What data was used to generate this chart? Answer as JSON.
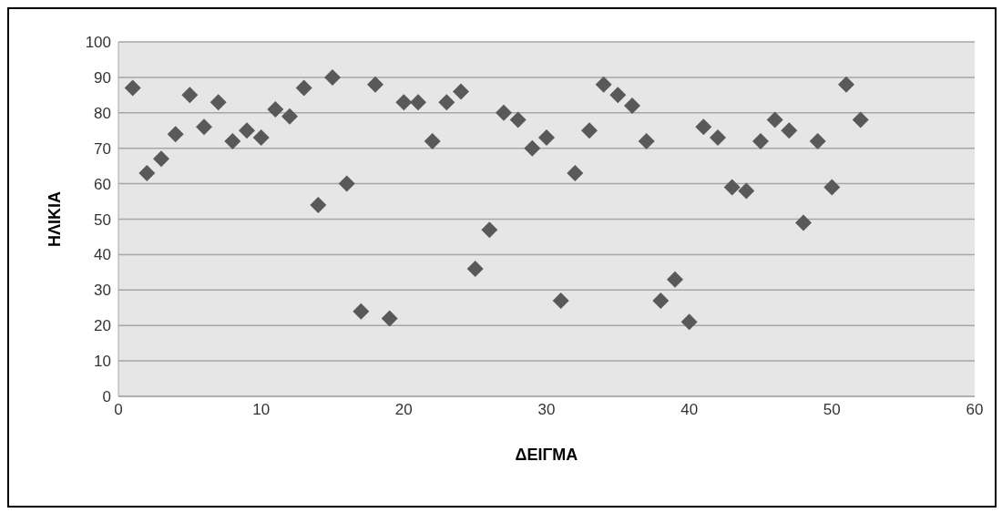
{
  "chart_data": {
    "type": "scatter",
    "xlabel": "ΔΕΙΓΜΑ",
    "ylabel": "ΗΛΙΚΙΑ",
    "x": [
      1,
      2,
      3,
      4,
      5,
      6,
      7,
      8,
      9,
      10,
      11,
      12,
      13,
      14,
      15,
      16,
      17,
      18,
      19,
      20,
      21,
      22,
      23,
      24,
      25,
      26,
      27,
      28,
      29,
      30,
      31,
      32,
      33,
      34,
      35,
      36,
      37,
      38,
      39,
      40,
      41,
      42,
      43,
      44,
      45,
      46,
      47,
      48,
      49,
      50,
      51,
      52
    ],
    "values": [
      87,
      63,
      67,
      74,
      85,
      76,
      83,
      72,
      75,
      73,
      81,
      79,
      87,
      54,
      90,
      60,
      24,
      88,
      22,
      83,
      83,
      72,
      83,
      86,
      36,
      47,
      80,
      78,
      70,
      73,
      27,
      63,
      75,
      88,
      85,
      82,
      72,
      27,
      33,
      21,
      76,
      73,
      59,
      58,
      72,
      78,
      75,
      49,
      72,
      59,
      88,
      78
    ],
    "color": "#595959",
    "marker": "diamond",
    "xlim": [
      0,
      60
    ],
    "xticks": [
      0,
      10,
      20,
      30,
      40,
      50,
      60
    ],
    "ylim": [
      0,
      100
    ],
    "yticks": [
      0,
      10,
      20,
      30,
      40,
      50,
      60,
      70,
      80,
      90,
      100
    ],
    "grid": "y"
  }
}
